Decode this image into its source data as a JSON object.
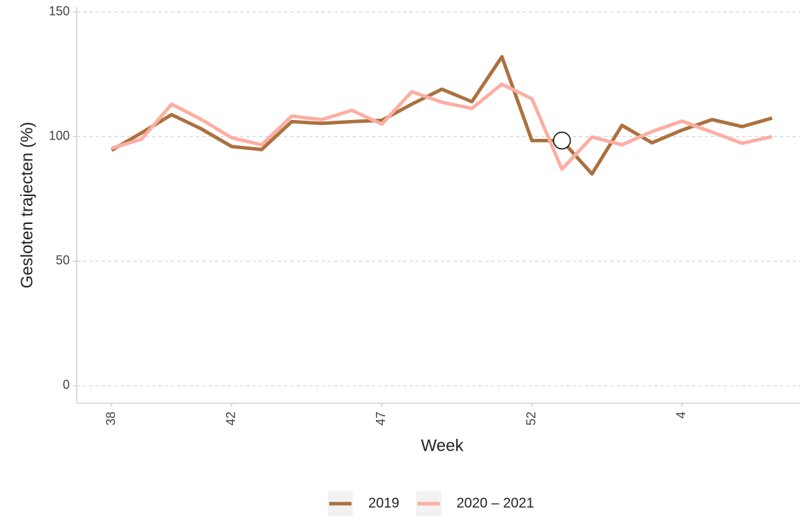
{
  "chart_data": {
    "type": "line",
    "x_label": "Week",
    "y_label": "Gesloten trajecten (%)",
    "categories": [
      "38",
      null,
      null,
      null,
      "42",
      null,
      null,
      null,
      null,
      "47",
      null,
      null,
      null,
      null,
      "52",
      null,
      null,
      null,
      null,
      "4",
      null,
      null,
      null
    ],
    "series": [
      {
        "name": "2019",
        "color": "#ac7140",
        "values": [
          94.5,
          101.5,
          108.8,
          103,
          96,
          94.8,
          106,
          105.3,
          106,
          106.5,
          113,
          119,
          114,
          132,
          98.4,
          98.4,
          85,
          104.5,
          97.5,
          102.6,
          106.8,
          104,
          107.4
        ]
      },
      {
        "name": "2020 – 2021",
        "color": "#fcaea3",
        "values": [
          95.3,
          99,
          113,
          106.8,
          99.5,
          96.7,
          108.2,
          106.8,
          110.5,
          105,
          118,
          113.8,
          111.3,
          121,
          115.2,
          86.9,
          99.8,
          96.7,
          102,
          106.2,
          101.8,
          97.3,
          100
        ]
      }
    ],
    "highlight": {
      "series": 0,
      "index": 15
    },
    "ylim": [
      -7,
      152
    ],
    "yticks": [
      0,
      50,
      100,
      150
    ],
    "grid": true,
    "legend": "bottom"
  }
}
